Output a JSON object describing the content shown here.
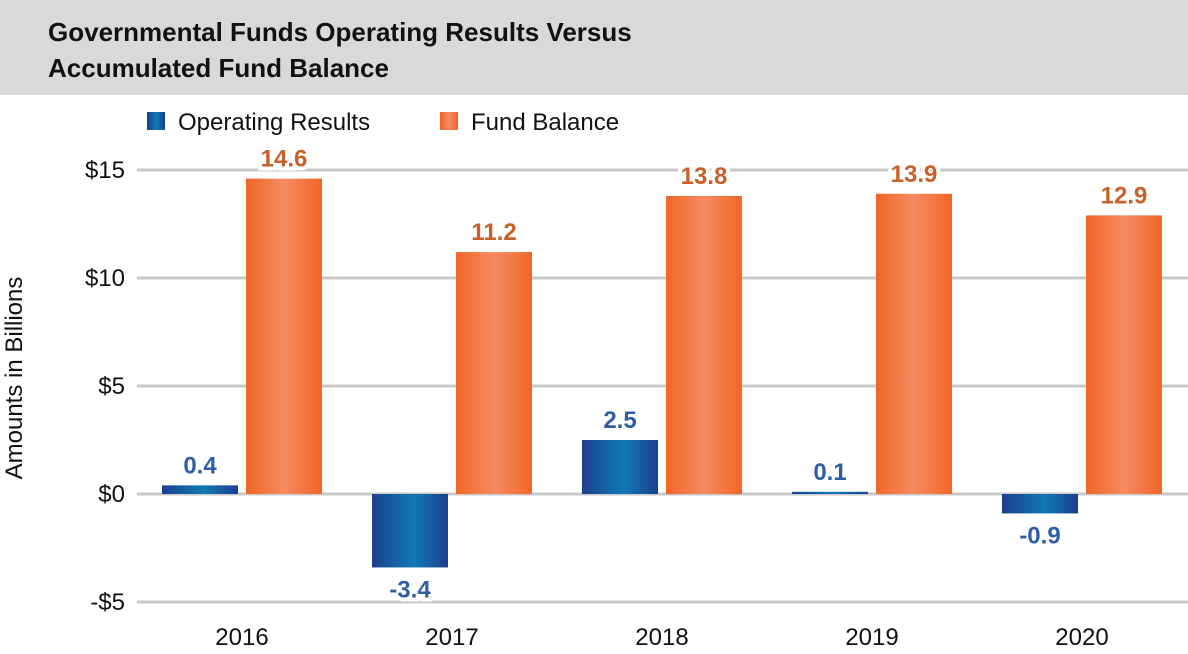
{
  "chart_data": {
    "type": "bar",
    "title_lines": [
      "Governmental Funds Operating Results Versus",
      "Accumulated Fund Balance"
    ],
    "ylabel": "Amounts in Billions",
    "xlabel": "",
    "categories": [
      "2016",
      "2017",
      "2018",
      "2019",
      "2020"
    ],
    "series": [
      {
        "name": "Operating Results",
        "values": [
          0.4,
          -3.4,
          2.5,
          0.1,
          -0.9
        ],
        "labels": [
          "0.4",
          "-3.4",
          "2.5",
          "0.1",
          "-0.9"
        ],
        "color": "#1f4e9c",
        "label_color": "#2e5fa6"
      },
      {
        "name": "Fund Balance",
        "values": [
          14.6,
          11.2,
          13.8,
          13.9,
          12.9
        ],
        "labels": [
          "14.6",
          "11.2",
          "13.8",
          "13.9",
          "12.9"
        ],
        "color": "#f26a2a",
        "label_color": "#c8602a"
      }
    ],
    "ylim": [
      -5,
      15
    ],
    "yticks": [
      15,
      10,
      5,
      0,
      -5
    ],
    "ytick_labels": [
      "$15",
      "$10",
      "$5",
      "$0",
      "-$5"
    ],
    "grid": true,
    "legend_position": "top"
  }
}
